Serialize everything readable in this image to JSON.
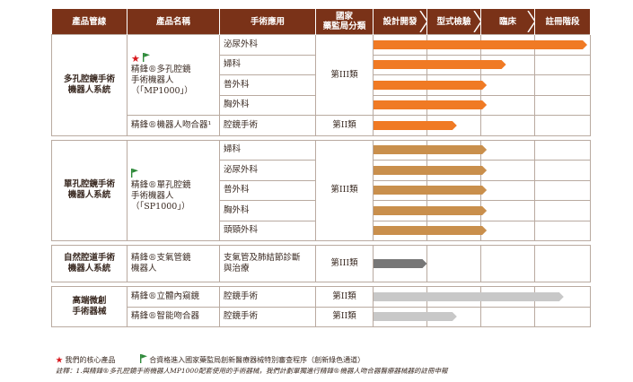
{
  "headers": {
    "product_line": "產品管線",
    "product_name": "產品名稱",
    "application": "手術應用",
    "classification": "國家\n藥監局分類",
    "phases": [
      "設計開發",
      "型式檢驗",
      "臨床",
      "註冊階段"
    ]
  },
  "groups": [
    {
      "line": "多孔腔鏡手術\n機器人系統",
      "products": [
        {
          "name": "精鋒®多孔腔鏡\n手術機器人\n（「MP1000」）",
          "icons": [
            "star-icon",
            "flag-icon"
          ],
          "classification": "第III類",
          "applications": [
            {
              "label": "泌尿外科",
              "progress": 1.0
            },
            {
              "label": "婦科",
              "progress": 0.62
            },
            {
              "label": "普外科",
              "progress": 0.53
            },
            {
              "label": "胸外科",
              "progress": 0.53
            }
          ]
        },
        {
          "name": "精鋒®機器人吻合器¹",
          "icons": [],
          "classification": "第II類",
          "applications": [
            {
              "label": "腔鏡手術",
              "progress": 0.39
            }
          ]
        }
      ],
      "color": "#f07a24"
    },
    {
      "line": "單孔腔鏡手術\n機器人系統",
      "products": [
        {
          "name": "精鋒®單孔腔鏡\n手術機器人\n（「SP1000」）",
          "icons": [
            "flag-icon"
          ],
          "classification": "第III類",
          "applications": [
            {
              "label": "婦科",
              "progress": 0.53
            },
            {
              "label": "泌尿外科",
              "progress": 0.53
            },
            {
              "label": "普外科",
              "progress": 0.53
            },
            {
              "label": "胸外科",
              "progress": 0.53
            },
            {
              "label": "頭頸外科",
              "progress": 0.53
            }
          ]
        }
      ],
      "color": "#c98f4c"
    },
    {
      "line": "自然腔道手術\n機器人系統",
      "products": [
        {
          "name": "精鋒®支氣管鏡\n機器人",
          "icons": [],
          "classification": "第III類",
          "applications": [
            {
              "label": "支氣管及肺結節診斷\n與治療",
              "progress": 0.25
            }
          ]
        }
      ],
      "color": "#777777"
    },
    {
      "line": "高端微創\n手術器械",
      "products": [
        {
          "name": "精鋒®立體內窺鏡",
          "icons": [],
          "classification": "第II類",
          "applications": [
            {
              "label": "腔鏡手術",
              "progress": 0.89
            }
          ]
        },
        {
          "name": "精鋒®智能吻合器",
          "icons": [],
          "classification": "第II類",
          "applications": [
            {
              "label": "腔鏡手術",
              "progress": 0.39
            }
          ]
        }
      ],
      "color": "#c8c8c8"
    }
  ],
  "legend": {
    "core_product": "我們的核心產品",
    "green_channel": "合資格進入國家藥監局創新醫療器械特別審查程序（創新綠色通道）"
  },
  "note": "註釋：1.與精鋒®多孔腔鏡手術機器人MP1000配套使用的手術器械，我們計劃單獨進行精鋒®機器人吻合器醫療器械器的註冊申報"
}
